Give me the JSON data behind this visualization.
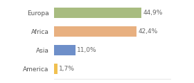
{
  "categories": [
    "America",
    "Asia",
    "Africa",
    "Europa"
  ],
  "values": [
    1.7,
    11.0,
    42.4,
    44.9
  ],
  "bar_colors": [
    "#f0c050",
    "#6e8fc9",
    "#e8b080",
    "#a8bc80"
  ],
  "labels": [
    "1,7%",
    "11,0%",
    "42,4%",
    "44,9%"
  ],
  "background_color": "#ffffff",
  "figsize": [
    2.8,
    1.2
  ],
  "dpi": 100,
  "xlim": [
    0,
    60
  ]
}
